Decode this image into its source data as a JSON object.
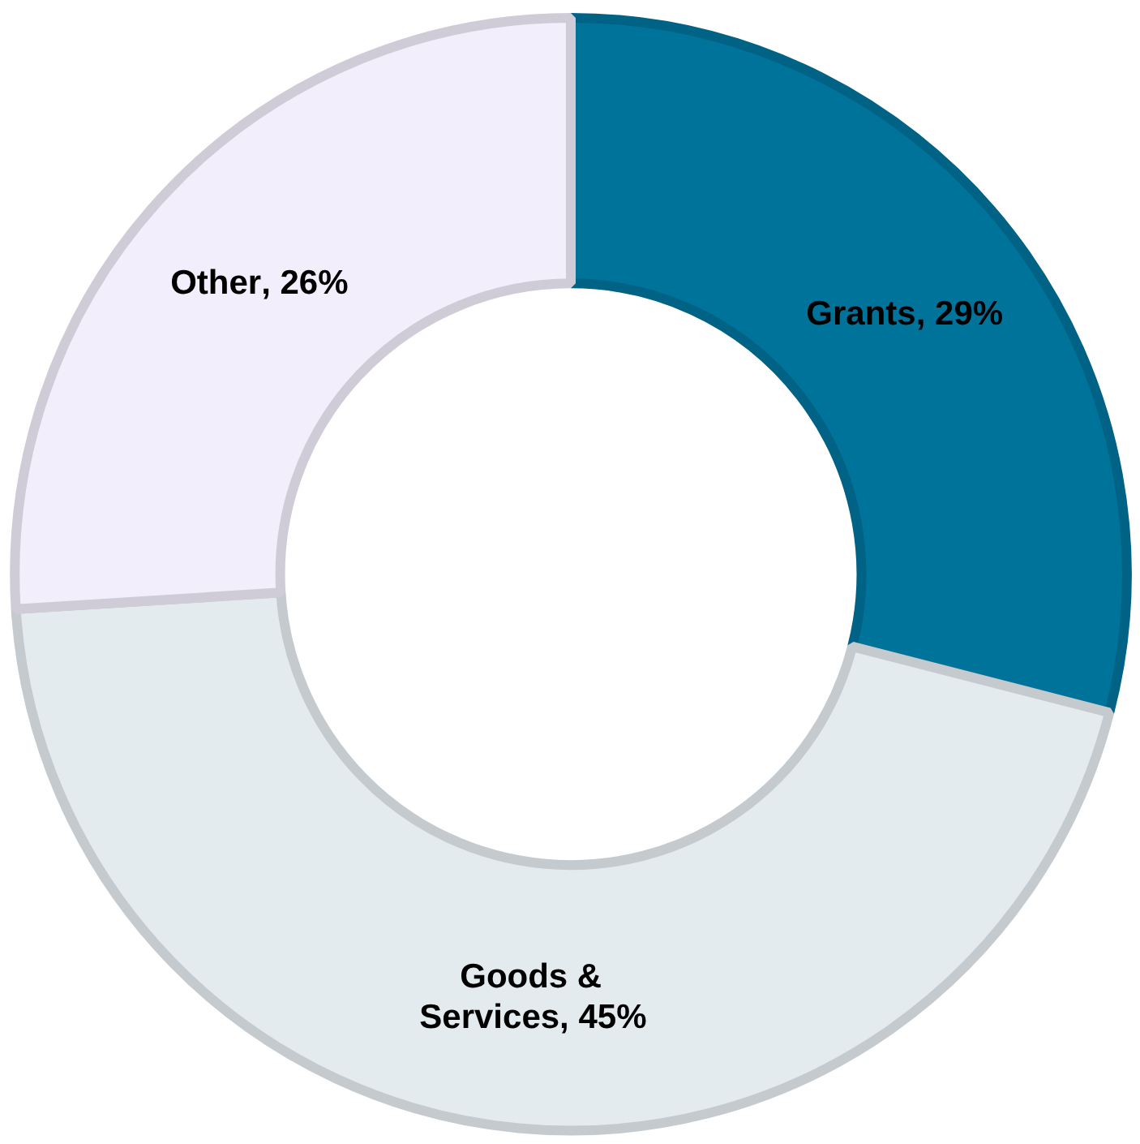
{
  "chart_data": {
    "type": "donut",
    "categories": [
      "Grants",
      "Goods & Services",
      "Other"
    ],
    "values": [
      29,
      45,
      26
    ],
    "colors": [
      "#00739a",
      "#e4ebef",
      "#f3eefb"
    ],
    "value_labels": [
      ", 29%",
      ", 45%",
      ", 26%"
    ]
  }
}
